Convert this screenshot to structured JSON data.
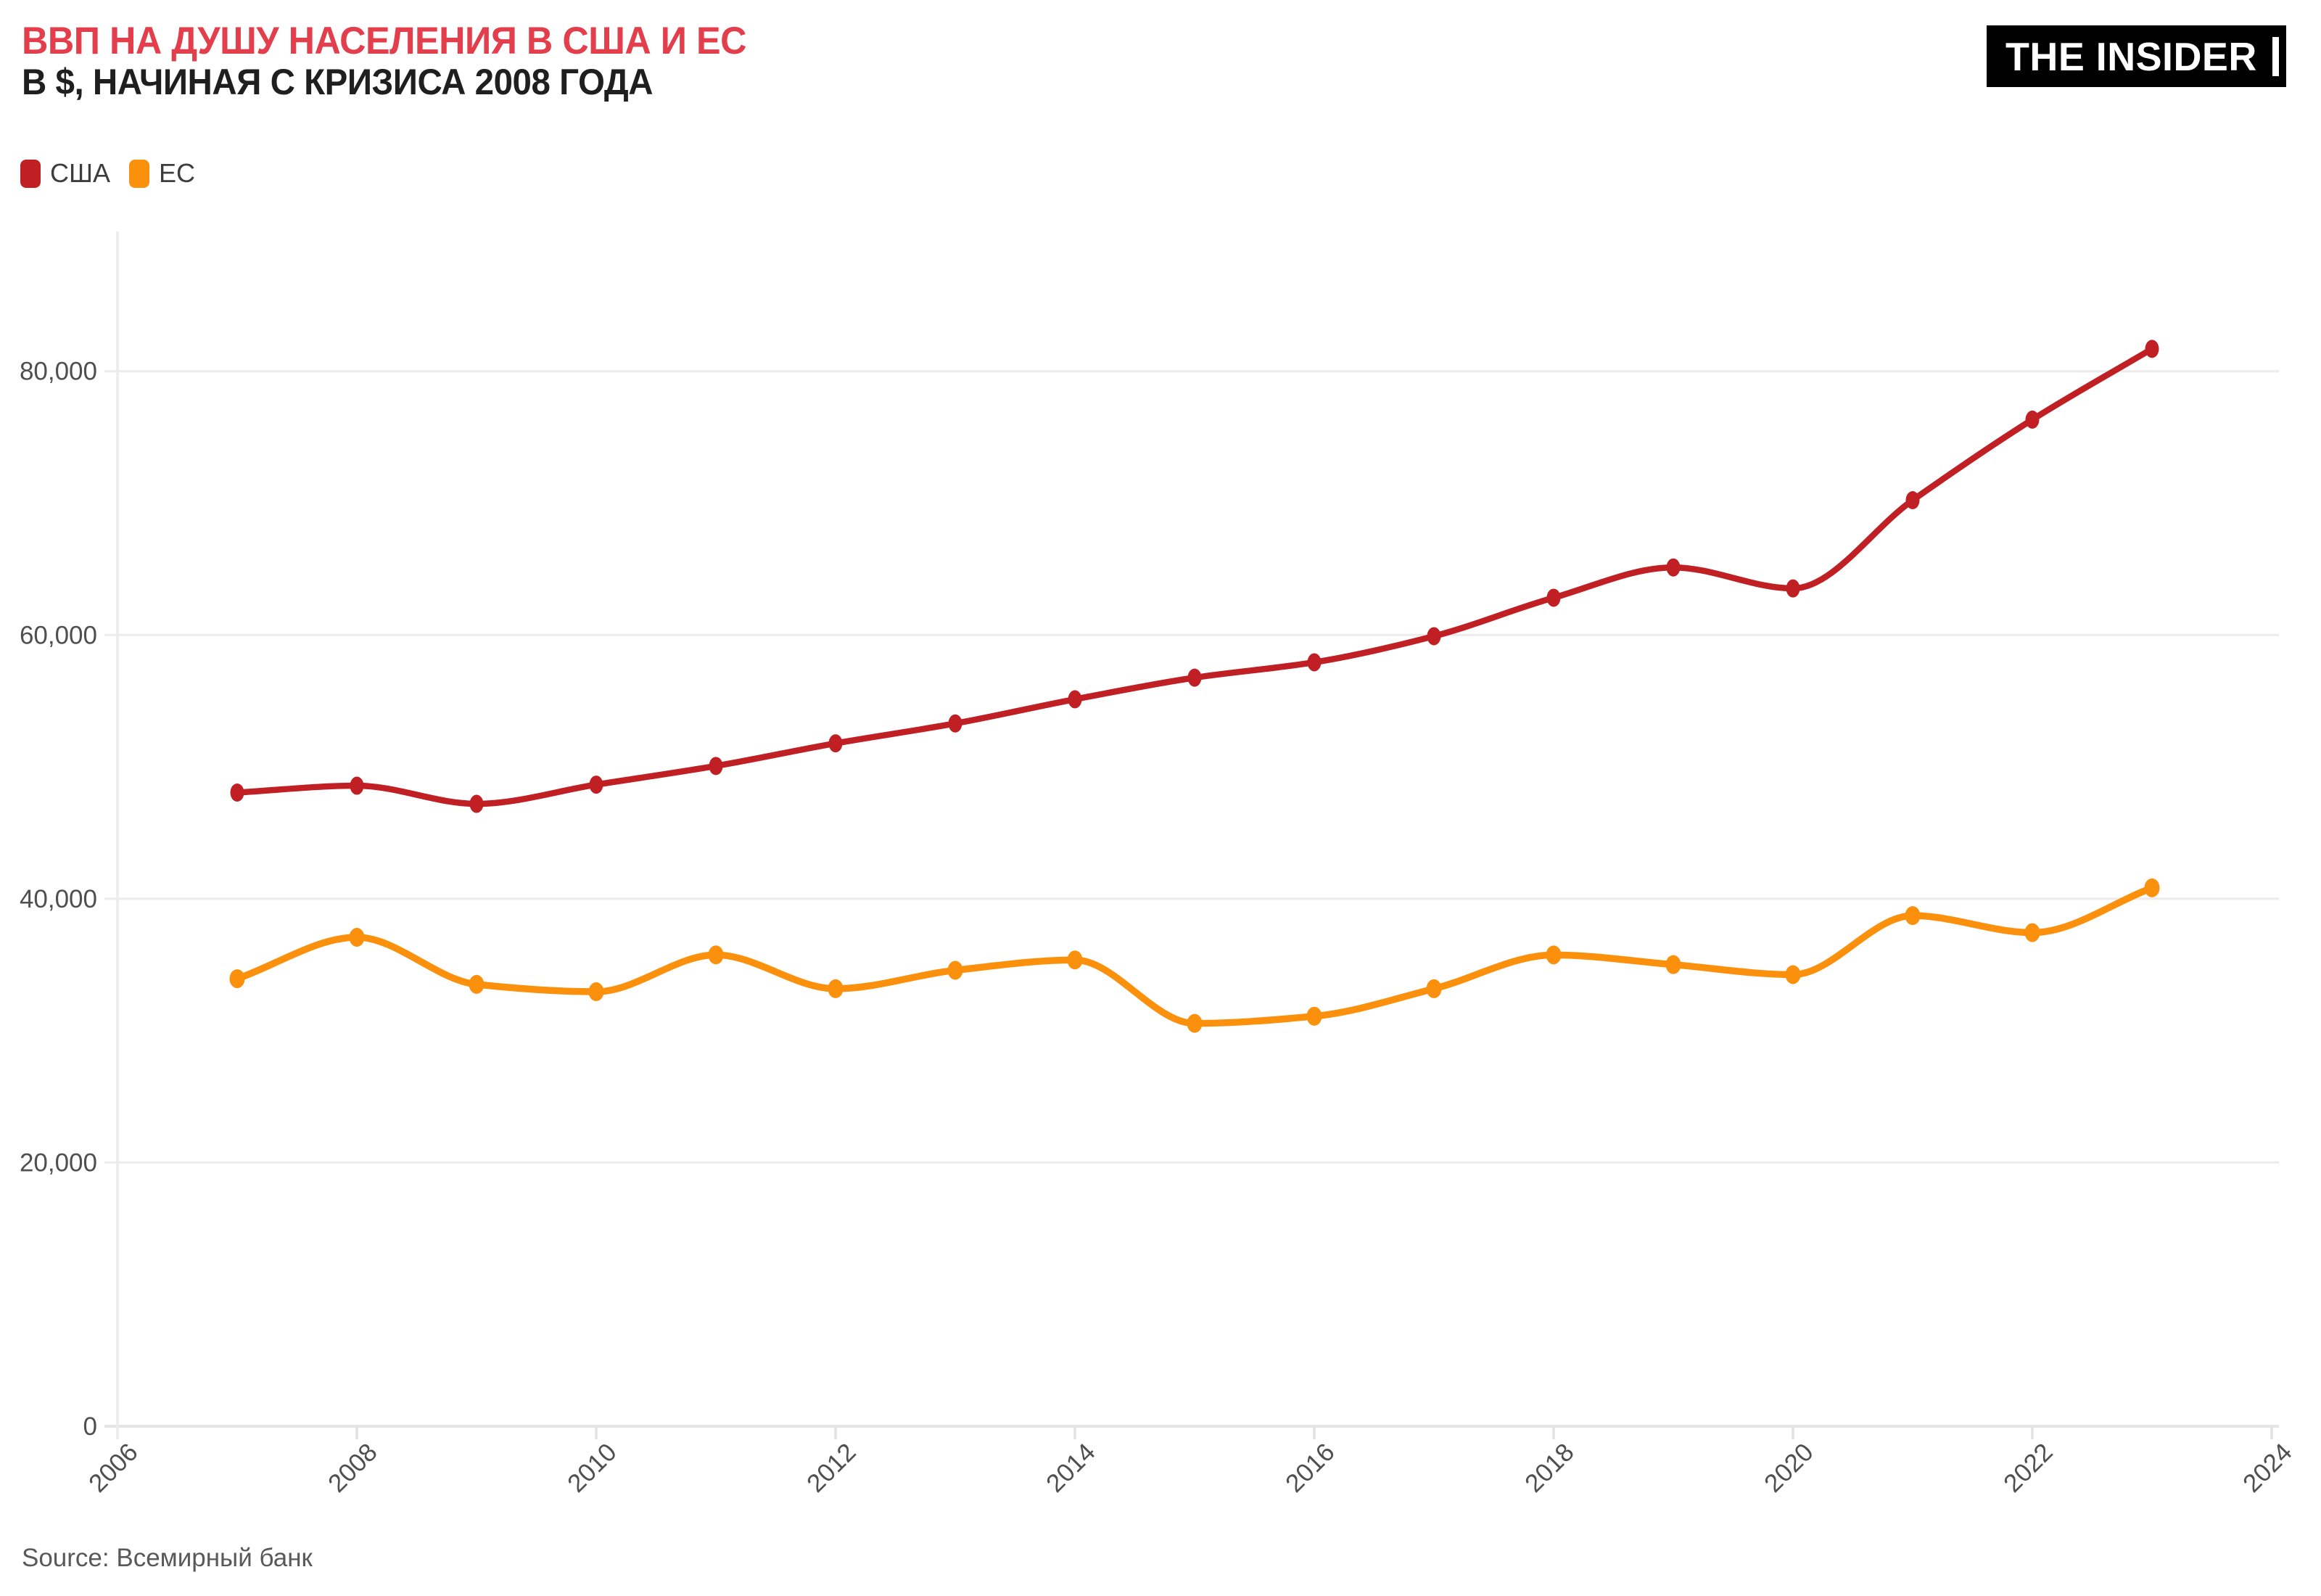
{
  "logo": {
    "text": "THE INSIDER"
  },
  "footer": {
    "source": "Source: Всемирный банк"
  },
  "chart_data": {
    "type": "line",
    "title": "ВВП НА ДУШУ НАСЕЛЕНИЯ В США И ЕС",
    "subtitle": "В $, НАЧИНАЯ С КРИЗИСА 2008 ГОДА",
    "xlabel": "",
    "ylabel": "",
    "background": "#ffffff",
    "grid": "horizontal",
    "legend_position": "top-left",
    "x": [
      2007,
      2008,
      2009,
      2010,
      2011,
      2012,
      2013,
      2014,
      2015,
      2016,
      2017,
      2018,
      2019,
      2020,
      2021,
      2022,
      2023
    ],
    "series": [
      {
        "name": "США",
        "color": "#c01f24",
        "values": [
          48050,
          48570,
          47195,
          48650,
          50066,
          51784,
          53291,
          55124,
          56763,
          57927,
          59908,
          62823,
          65120,
          63530,
          70219,
          76330,
          81695
        ]
      },
      {
        "name": "ЕС",
        "color": "#fb900d",
        "values": [
          33935,
          37075,
          33506,
          32950,
          35742,
          33177,
          34576,
          35357,
          30550,
          31090,
          33174,
          35736,
          35003,
          34245,
          38717,
          37430,
          40824
        ]
      }
    ],
    "xticks": [
      2006,
      2008,
      2010,
      2012,
      2014,
      2016,
      2018,
      2020,
      2022,
      2024
    ],
    "yticks": [
      0,
      20000,
      40000,
      60000,
      80000
    ],
    "xlim": [
      2006,
      2024
    ],
    "ylim": [
      0,
      90600
    ]
  }
}
